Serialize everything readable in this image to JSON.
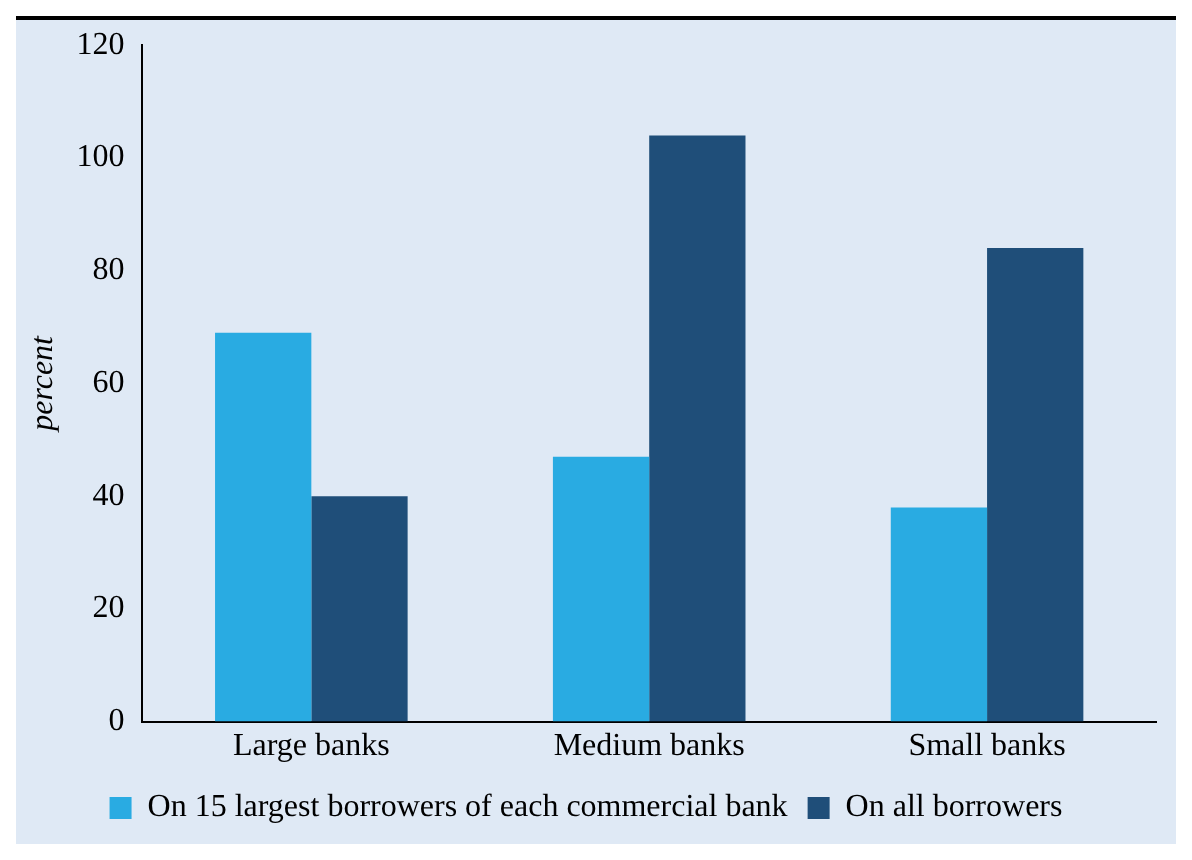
{
  "chart_data": {
    "type": "bar",
    "ylabel": "percent",
    "categories": [
      "Large banks",
      "Medium banks",
      "Small banks"
    ],
    "series": [
      {
        "name": "On 15 largest borrowers of each commercial bank",
        "color": "#29abe2",
        "values": [
          69,
          47,
          38
        ]
      },
      {
        "name": "On all borrowers",
        "color": "#1f4e79",
        "values": [
          40,
          104,
          84
        ]
      }
    ],
    "ylim": [
      0,
      120
    ],
    "yticks": [
      0,
      20,
      40,
      60,
      80,
      100,
      120
    ],
    "grid": false,
    "legend": "bottom"
  }
}
